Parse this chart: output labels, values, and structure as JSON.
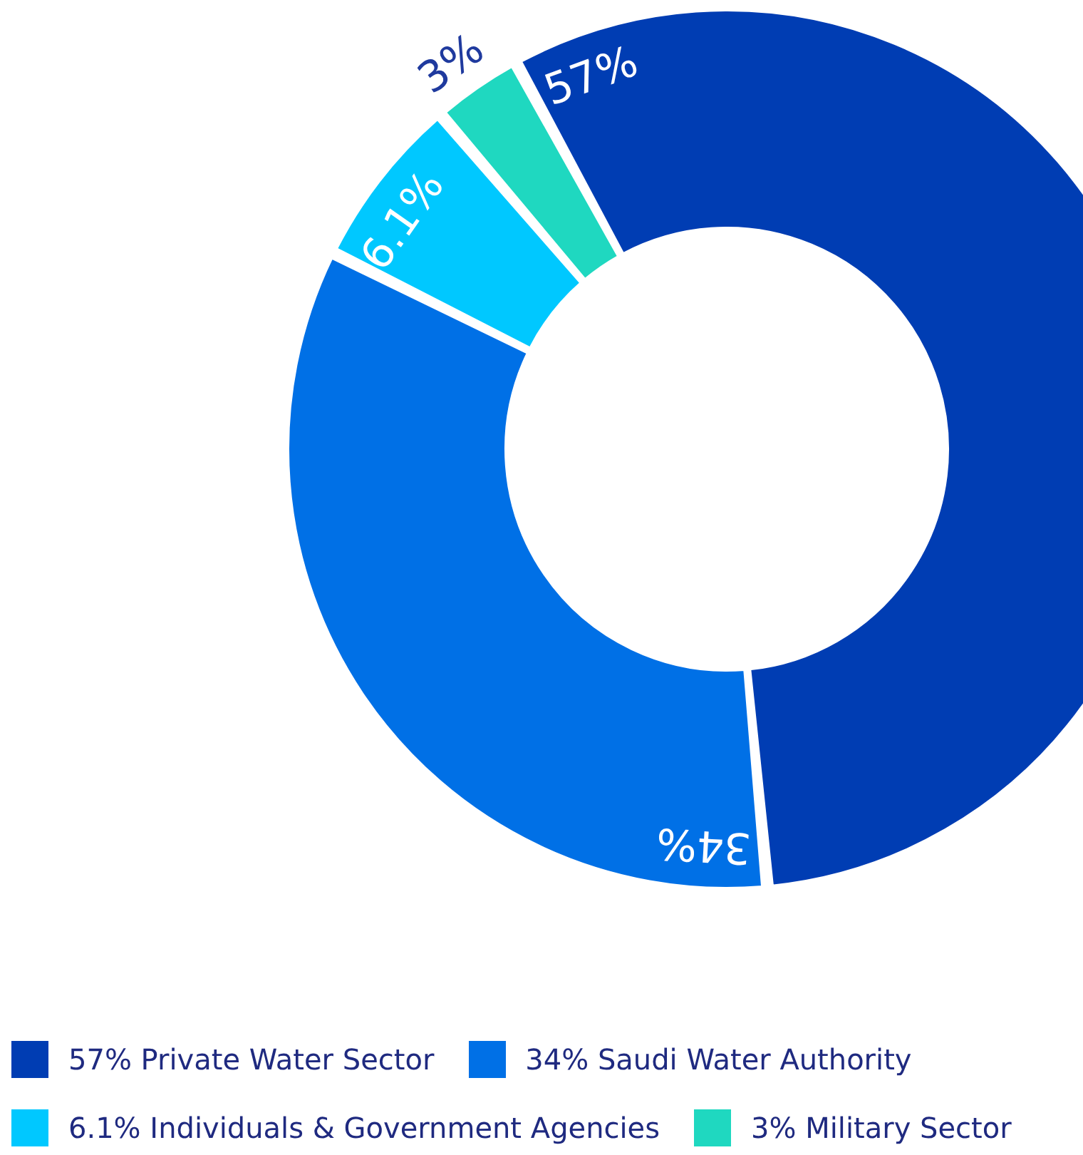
{
  "chart_data": {
    "type": "donut",
    "categories": [
      "Private Water Sector",
      "Saudi Water Authority",
      "Individuals & Government Agencies",
      "Military Sector"
    ],
    "values": [
      57,
      34,
      6.1,
      3
    ],
    "value_labels": [
      "57%",
      "34%",
      "6.1%",
      "3%"
    ],
    "colors": [
      "#003db3",
      "#0070e6",
      "#00c8ff",
      "#1fd8c0"
    ],
    "legend": "bottom"
  }
}
